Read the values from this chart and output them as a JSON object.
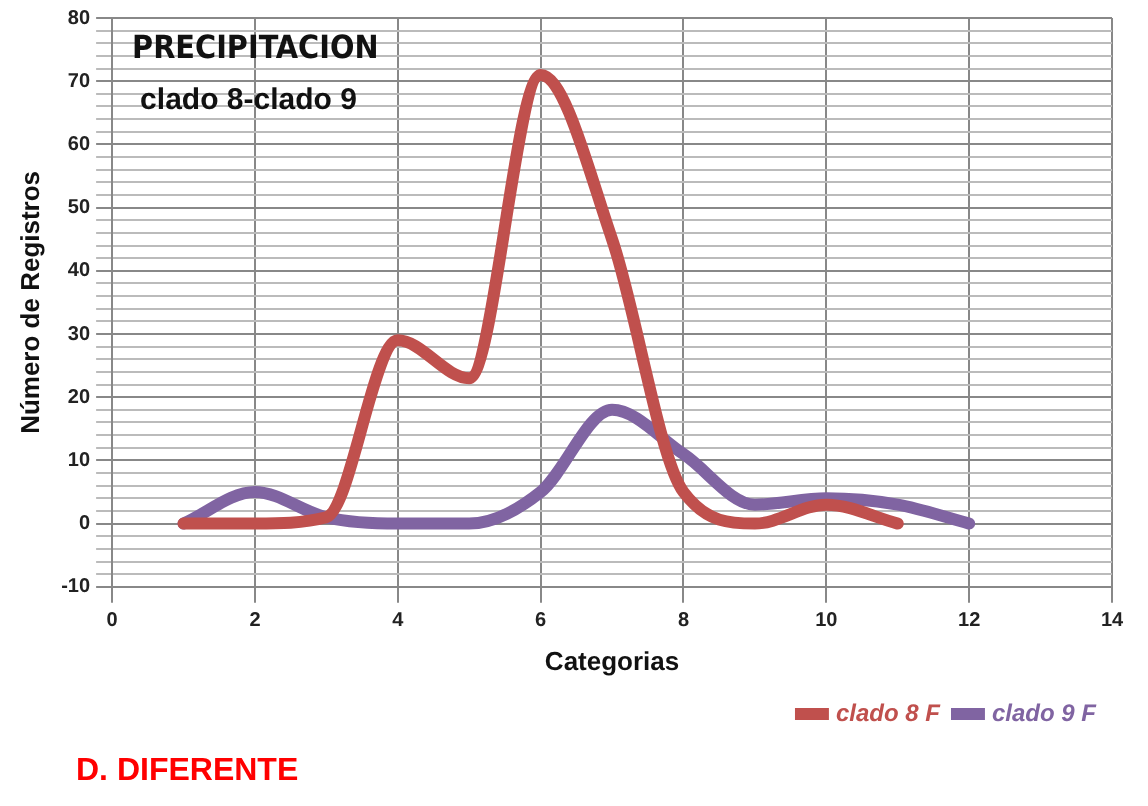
{
  "chart_data": {
    "type": "line",
    "title": "PRECIPITACION",
    "subtitle": "clado 8-clado 9",
    "xlabel": "Categorias",
    "ylabel": "Número de Registros",
    "annotations": [
      "D. DIFERENTE"
    ],
    "series": [
      {
        "name": "clado 8 F",
        "color": "#c0504d",
        "x": [
          1,
          2,
          3,
          4,
          5,
          6,
          7,
          8,
          9,
          10,
          11
        ],
        "values": [
          0,
          0,
          1,
          29,
          23,
          71,
          45,
          5,
          0,
          3,
          0
        ]
      },
      {
        "name": "clado 9 F",
        "color": "#8064a2",
        "x": [
          1,
          2,
          3,
          4,
          5,
          6,
          7,
          8,
          9,
          10,
          11,
          12
        ],
        "values": [
          0,
          5,
          1,
          0,
          0,
          5,
          18,
          11,
          3,
          4,
          3,
          0
        ]
      }
    ],
    "xlim": [
      0,
      14
    ],
    "xticks": [
      0,
      2,
      4,
      6,
      8,
      10,
      12,
      14
    ],
    "ylim": [
      -10,
      80
    ],
    "yticks": [
      -10,
      {
        "value": -8,
        "label": null
      },
      {
        "value": -6,
        "label": null
      },
      {
        "value": -4,
        "label": null
      },
      {
        "value": -2,
        "label": null
      },
      0,
      {
        "value": 2,
        "label": null
      },
      {
        "value": 4,
        "label": null
      },
      {
        "value": 6,
        "label": null
      },
      {
        "value": 8,
        "label": null
      },
      10,
      {
        "value": 12,
        "label": null
      },
      {
        "value": 14,
        "label": null
      },
      {
        "value": 16,
        "label": null
      },
      {
        "value": 18,
        "label": null
      },
      20,
      {
        "value": 22,
        "label": null
      },
      {
        "value": 24,
        "label": null
      },
      {
        "value": 26,
        "label": null
      },
      {
        "value": 28,
        "label": null
      },
      30,
      {
        "value": 32,
        "label": null
      },
      {
        "value": 34,
        "label": null
      },
      {
        "value": 36,
        "label": null
      },
      {
        "value": 38,
        "label": null
      },
      40,
      {
        "value": 42,
        "label": null
      },
      {
        "value": 44,
        "label": null
      },
      {
        "value": 46,
        "label": null
      },
      {
        "value": 48,
        "label": null
      },
      50,
      {
        "value": 52,
        "label": null
      },
      {
        "value": 54,
        "label": null
      },
      {
        "value": 56,
        "label": null
      },
      {
        "value": 58,
        "label": null
      },
      60,
      {
        "value": 62,
        "label": null
      },
      {
        "value": 64,
        "label": null
      },
      {
        "value": 66,
        "label": null
      },
      {
        "value": 68,
        "label": null
      },
      70,
      {
        "value": 72,
        "label": null
      },
      {
        "value": 74,
        "label": null
      },
      {
        "value": 76,
        "label": null
      },
      {
        "value": 78,
        "label": null
      },
      80
    ],
    "grid": true,
    "legend": "bottom right",
    "marker": "none",
    "line_style": "solid"
  }
}
